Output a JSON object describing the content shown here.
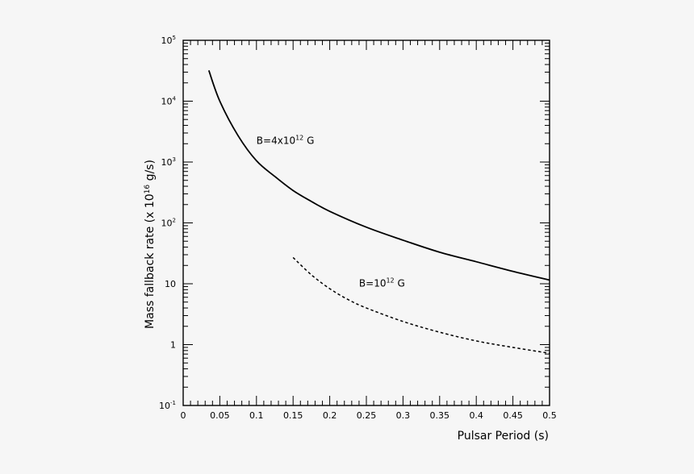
{
  "chart_data": {
    "type": "line",
    "xlabel": "Pulsar Period (s)",
    "ylabel_prefix": "Mass fallback rate (x 10",
    "ylabel_exp": "16",
    "ylabel_suffix": " g/s)",
    "xlim": [
      0,
      0.5
    ],
    "ylim": [
      0.1,
      100000
    ],
    "yscale": "log",
    "grid": false,
    "x_ticks": [
      {
        "value": 0,
        "label": "0"
      },
      {
        "value": 0.05,
        "label": "0.05"
      },
      {
        "value": 0.1,
        "label": "0.1"
      },
      {
        "value": 0.15,
        "label": "0.15"
      },
      {
        "value": 0.2,
        "label": "0.2"
      },
      {
        "value": 0.25,
        "label": "0.25"
      },
      {
        "value": 0.3,
        "label": "0.3"
      },
      {
        "value": 0.35,
        "label": "0.35"
      },
      {
        "value": 0.4,
        "label": "0.4"
      },
      {
        "value": 0.45,
        "label": "0.45"
      },
      {
        "value": 0.5,
        "label": "0.5"
      }
    ],
    "y_ticks": [
      {
        "value": 0.1,
        "base": "10",
        "exp": "-1"
      },
      {
        "value": 1,
        "base": "1",
        "exp": ""
      },
      {
        "value": 10,
        "base": "10",
        "exp": ""
      },
      {
        "value": 100,
        "base": "10",
        "exp": "2"
      },
      {
        "value": 1000,
        "base": "10",
        "exp": "3"
      },
      {
        "value": 10000,
        "base": "10",
        "exp": "4"
      },
      {
        "value": 100000,
        "base": "10",
        "exp": "5"
      }
    ],
    "series": [
      {
        "style": "solid",
        "label_base": "B=4x10",
        "label_exp": "12",
        "label_unit": " G",
        "label_at": [
          0.1,
          2000
        ],
        "x": [
          0.035,
          0.05,
          0.075,
          0.1,
          0.125,
          0.15,
          0.175,
          0.2,
          0.25,
          0.3,
          0.35,
          0.4,
          0.45,
          0.5
        ],
        "y": [
          32000,
          10000,
          2700,
          1050,
          580,
          340,
          225,
          155,
          85,
          52,
          33,
          23,
          16,
          11.5
        ]
      },
      {
        "style": "dashed",
        "label_base": "B=10",
        "label_exp": "12",
        "label_unit": " G",
        "label_at": [
          0.24,
          9
        ],
        "x": [
          0.15,
          0.175,
          0.2,
          0.225,
          0.25,
          0.3,
          0.35,
          0.4,
          0.45,
          0.5
        ],
        "y": [
          27,
          14,
          8.3,
          5.5,
          4,
          2.4,
          1.6,
          1.15,
          0.9,
          0.72
        ]
      }
    ]
  }
}
